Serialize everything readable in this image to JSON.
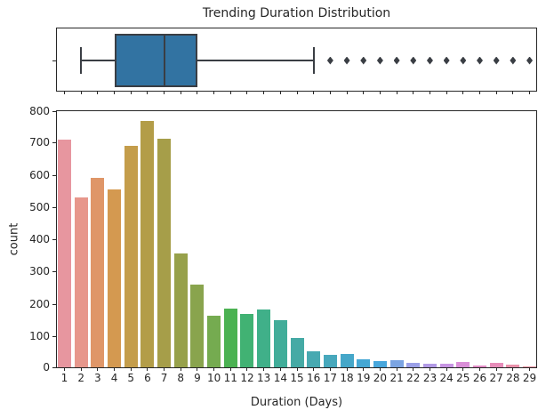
{
  "figure": {
    "title": "Trending Duration Distribution",
    "background": "#ffffff",
    "text_color": "#262626"
  },
  "chart_data": [
    {
      "type": "box",
      "orientation": "horizontal",
      "title": "Trending Duration Distribution",
      "x_range": [
        1,
        29
      ],
      "stats": {
        "whisker_low": 2,
        "q1": 4,
        "median": 7,
        "q3": 9,
        "whisker_high": 16,
        "outliers": [
          17,
          18,
          19,
          20,
          21,
          22,
          23,
          24,
          25,
          26,
          27,
          28,
          29
        ]
      },
      "box_fill_color": "#3273a2",
      "line_color": "#3a3e44",
      "outlier_marker": "diamond"
    },
    {
      "type": "bar",
      "title": "",
      "xlabel": "Duration (Days)",
      "ylabel": "count",
      "ylim": [
        0,
        800
      ],
      "yticks": [
        0,
        100,
        200,
        300,
        400,
        500,
        600,
        700,
        800
      ],
      "grid": false,
      "legend": "none",
      "categories": [
        1,
        2,
        3,
        4,
        5,
        6,
        7,
        8,
        9,
        10,
        11,
        12,
        13,
        14,
        15,
        16,
        17,
        18,
        19,
        20,
        21,
        22,
        23,
        24,
        25,
        26,
        27,
        28,
        29
      ],
      "values": [
        705,
        527,
        587,
        551,
        688,
        765,
        709,
        352,
        257,
        160,
        181,
        166,
        178,
        145,
        92,
        51,
        39,
        41,
        24,
        20,
        21,
        15,
        12,
        10,
        16,
        5,
        14,
        8,
        3
      ],
      "palette": [
        "#e7969f",
        "#e7978c",
        "#df9668",
        "#d49950",
        "#c49d4b",
        "#b39d48",
        "#a69e49",
        "#97a14b",
        "#89a44d",
        "#75ab50",
        "#4bb252",
        "#41b273",
        "#40b089",
        "#41ad99",
        "#45aaa5",
        "#47a9b1",
        "#47a8bc",
        "#45a7c9",
        "#44a7d4",
        "#48a7dc",
        "#7ba4e2",
        "#9a9fe7",
        "#b29ae5",
        "#c795e3",
        "#da8ed8",
        "#e28cc6",
        "#e78db9",
        "#e990aa",
        "#ea93a1"
      ]
    }
  ]
}
